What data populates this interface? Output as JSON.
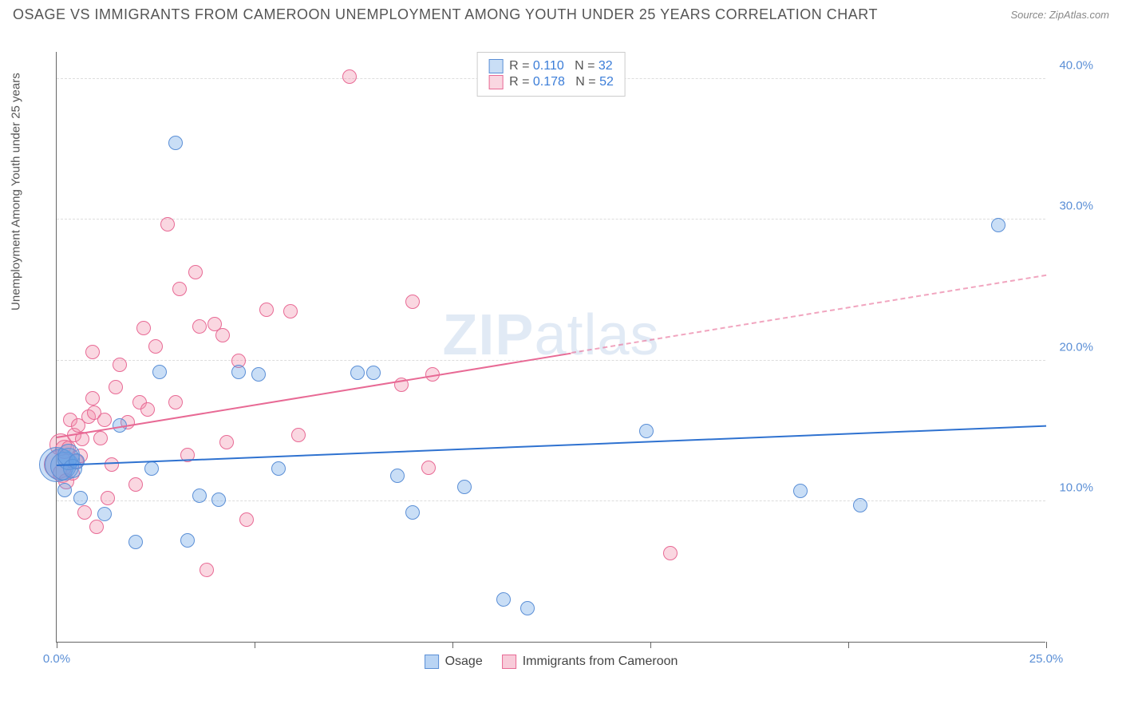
{
  "header": {
    "title": "OSAGE VS IMMIGRANTS FROM CAMEROON UNEMPLOYMENT AMONG YOUTH UNDER 25 YEARS CORRELATION CHART",
    "source": "Source: ZipAtlas.com"
  },
  "watermark": {
    "bold": "ZIP",
    "light": "atlas"
  },
  "chart": {
    "type": "scatter",
    "xlim": [
      0,
      25
    ],
    "ylim": [
      0,
      42
    ],
    "x_ticks": [
      0,
      5,
      10,
      15,
      20,
      25
    ],
    "x_tick_labels": [
      "0.0%",
      "",
      "",
      "",
      "",
      "25.0%"
    ],
    "y_ticks": [
      10,
      20,
      30,
      40
    ],
    "y_tick_labels": [
      "10.0%",
      "20.0%",
      "30.0%",
      "40.0%"
    ],
    "y_axis_title": "Unemployment Among Youth under 25 years",
    "grid_color": "#dddddd",
    "axis_color": "#666666",
    "background": "#ffffff",
    "marker_radius": 9,
    "series": [
      {
        "name": "Osage",
        "color_fill": "rgba(100,160,230,0.35)",
        "color_stroke": "#5b8fd6",
        "R": "0.110",
        "N": "32",
        "trend": {
          "x1": 0,
          "y1": 12.5,
          "x2": 25,
          "y2": 15.3,
          "color": "#2f72d0",
          "dash_from_x": 25
        },
        "points": [
          [
            0.0,
            12.6,
            22
          ],
          [
            0.1,
            12.6,
            20
          ],
          [
            0.2,
            12.5,
            18
          ],
          [
            0.3,
            13.0,
            14
          ],
          [
            0.3,
            13.3,
            14
          ],
          [
            0.4,
            12.3,
            12
          ],
          [
            0.5,
            12.8,
            10
          ],
          [
            0.2,
            10.8,
            9
          ],
          [
            0.6,
            10.2,
            9
          ],
          [
            1.2,
            9.1,
            9
          ],
          [
            1.6,
            15.4,
            9
          ],
          [
            2.0,
            7.1,
            9
          ],
          [
            2.4,
            12.3,
            9
          ],
          [
            2.6,
            19.2,
            9
          ],
          [
            3.0,
            35.5,
            9
          ],
          [
            3.3,
            7.2,
            9
          ],
          [
            3.6,
            10.4,
            9
          ],
          [
            4.1,
            10.1,
            9
          ],
          [
            4.6,
            19.2,
            9
          ],
          [
            5.1,
            19.0,
            9
          ],
          [
            5.6,
            12.3,
            9
          ],
          [
            7.6,
            19.1,
            9
          ],
          [
            8.0,
            19.1,
            9
          ],
          [
            8.6,
            11.8,
            9
          ],
          [
            9.0,
            9.2,
            9
          ],
          [
            10.3,
            11.0,
            9
          ],
          [
            11.3,
            3.0,
            9
          ],
          [
            11.9,
            2.4,
            9
          ],
          [
            14.9,
            15.0,
            9
          ],
          [
            18.8,
            10.7,
            9
          ],
          [
            20.3,
            9.7,
            9
          ],
          [
            23.8,
            29.6,
            9
          ]
        ]
      },
      {
        "name": "Immigrants from Cameroon",
        "color_fill": "rgba(240,140,170,0.35)",
        "color_stroke": "#e86a95",
        "R": "0.178",
        "N": "52",
        "trend": {
          "x1": 0,
          "y1": 14.5,
          "x2": 25,
          "y2": 26.0,
          "color": "#e86a95",
          "dash_from_x": 13
        },
        "points": [
          [
            0.05,
            12.6,
            18
          ],
          [
            0.1,
            14.0,
            14
          ],
          [
            0.15,
            12.0,
            12
          ],
          [
            0.2,
            13.7,
            12
          ],
          [
            0.25,
            11.4,
            10
          ],
          [
            0.3,
            13.8,
            9
          ],
          [
            0.35,
            15.8,
            9
          ],
          [
            0.4,
            12.0,
            9
          ],
          [
            0.45,
            14.7,
            9
          ],
          [
            0.5,
            12.8,
            9
          ],
          [
            0.55,
            15.4,
            9
          ],
          [
            0.6,
            13.2,
            9
          ],
          [
            0.8,
            16.0,
            9
          ],
          [
            0.9,
            17.3,
            9
          ],
          [
            1.0,
            8.2,
            9
          ],
          [
            1.1,
            14.5,
            9
          ],
          [
            1.3,
            10.2,
            9
          ],
          [
            1.5,
            18.1,
            9
          ],
          [
            1.6,
            19.7,
            9
          ],
          [
            1.8,
            15.6,
            9
          ],
          [
            2.0,
            11.2,
            9
          ],
          [
            2.1,
            17.0,
            9
          ],
          [
            2.3,
            16.5,
            9
          ],
          [
            2.5,
            21.0,
            9
          ],
          [
            2.8,
            29.7,
            9
          ],
          [
            3.1,
            25.1,
            9
          ],
          [
            3.3,
            13.3,
            9
          ],
          [
            3.5,
            26.3,
            9
          ],
          [
            3.6,
            22.4,
            9
          ],
          [
            3.8,
            5.1,
            9
          ],
          [
            4.0,
            22.6,
            9
          ],
          [
            4.2,
            21.8,
            9
          ],
          [
            4.3,
            14.2,
            9
          ],
          [
            4.6,
            20.0,
            9
          ],
          [
            4.8,
            8.7,
            9
          ],
          [
            5.3,
            23.6,
            9
          ],
          [
            5.9,
            23.5,
            9
          ],
          [
            6.1,
            14.7,
            9
          ],
          [
            7.4,
            40.2,
            9
          ],
          [
            8.7,
            18.3,
            9
          ],
          [
            9.0,
            24.2,
            9
          ],
          [
            9.4,
            12.4,
            9
          ],
          [
            9.5,
            19.0,
            9
          ],
          [
            15.5,
            6.3,
            9
          ],
          [
            0.7,
            9.2,
            9
          ],
          [
            1.4,
            12.6,
            9
          ],
          [
            2.2,
            22.3,
            9
          ],
          [
            0.9,
            20.6,
            9
          ],
          [
            3.0,
            17.0,
            9
          ],
          [
            1.2,
            15.8,
            9
          ],
          [
            0.65,
            14.4,
            9
          ],
          [
            0.95,
            16.3,
            9
          ]
        ]
      }
    ],
    "legend_top": {
      "R_label": "R =",
      "N_label": "N ="
    },
    "legend_bottom": [
      {
        "label": "Osage",
        "fill": "rgba(100,160,230,0.45)",
        "stroke": "#5b8fd6"
      },
      {
        "label": "Immigrants from Cameroon",
        "fill": "rgba(240,140,170,0.45)",
        "stroke": "#e86a95"
      }
    ]
  }
}
